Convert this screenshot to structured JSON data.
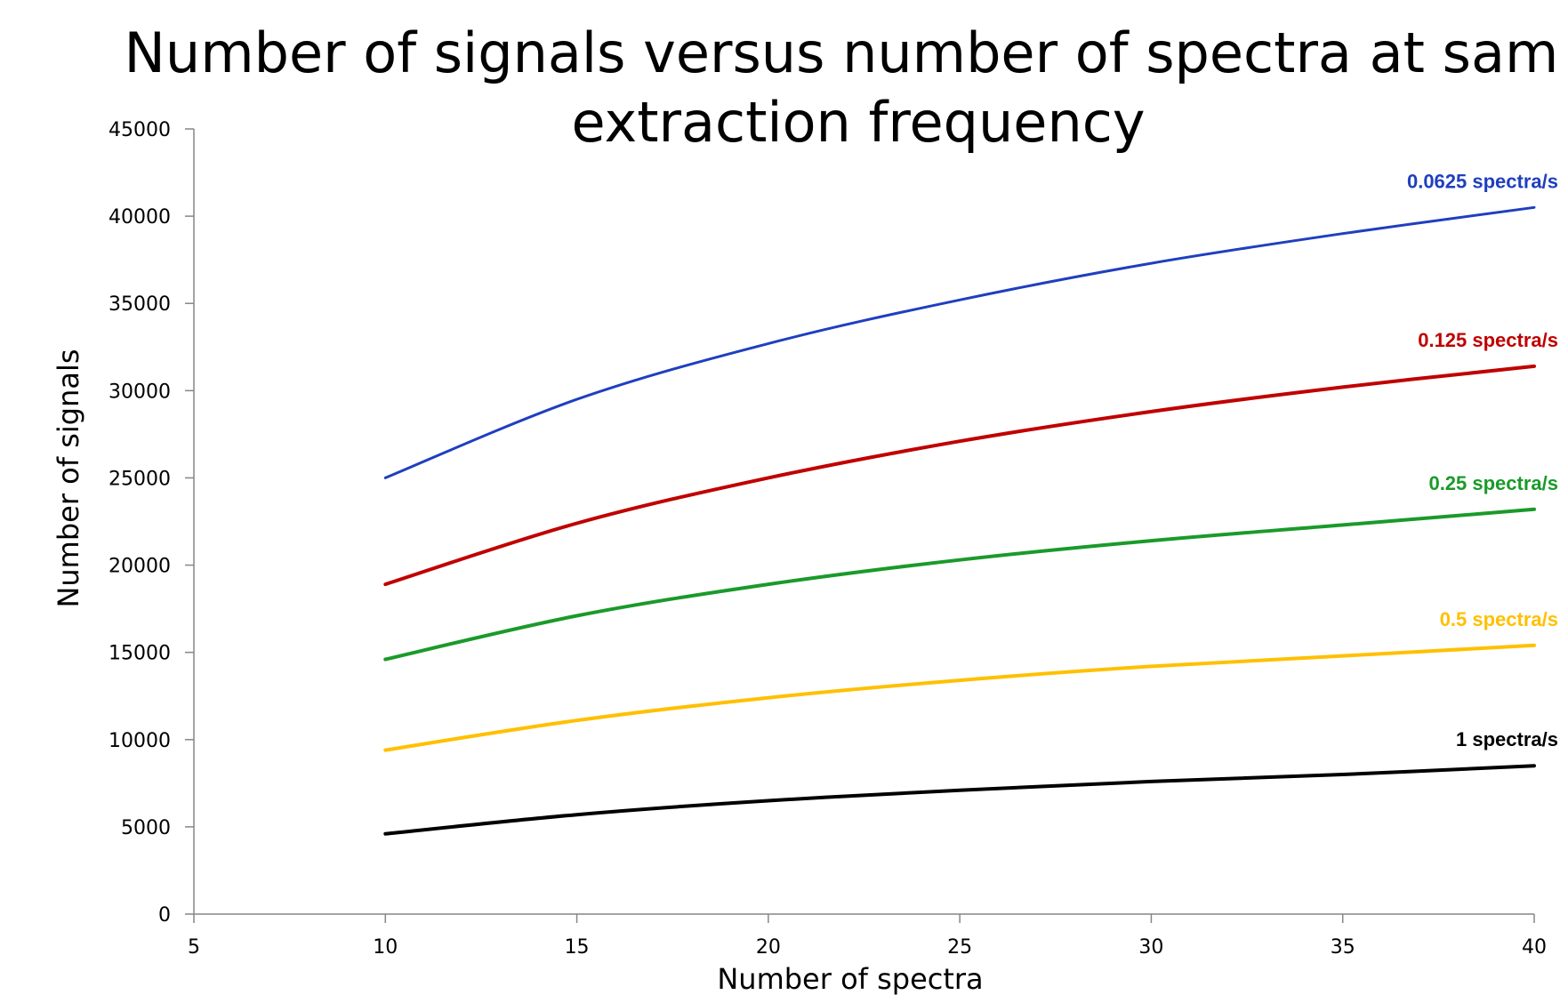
{
  "chart_data": {
    "type": "line",
    "title_lines": [
      "Number of signals versus number of spectra at same",
      "extraction frequency"
    ],
    "xlabel": "Number of spectra",
    "ylabel": "Number of signals",
    "xlim": [
      5,
      40
    ],
    "ylim": [
      0,
      45000
    ],
    "xticks": [
      5,
      10,
      15,
      20,
      25,
      30,
      35,
      40
    ],
    "yticks": [
      0,
      5000,
      10000,
      15000,
      20000,
      25000,
      30000,
      35000,
      40000,
      45000
    ],
    "grid": false,
    "legend": "none",
    "x": [
      10,
      15,
      20,
      25,
      30,
      35,
      40
    ],
    "series": [
      {
        "name": "0.0625 spectra/s",
        "color": "#1f3fbf",
        "values": [
          25000,
          29500,
          32700,
          35200,
          37300,
          39000,
          40500
        ]
      },
      {
        "name": "0.125 spectra/s",
        "color": "#c00000",
        "values": [
          18900,
          22400,
          25000,
          27100,
          28800,
          30200,
          31400
        ]
      },
      {
        "name": "0.25 spectra/s",
        "color": "#1a9a2a",
        "values": [
          14600,
          17100,
          18900,
          20300,
          21400,
          22300,
          23200
        ]
      },
      {
        "name": "0.5 spectra/s",
        "color": "#ffc000",
        "values": [
          9400,
          11100,
          12400,
          13400,
          14200,
          14800,
          15400
        ]
      },
      {
        "name": "1 spectra/s",
        "color": "#000000",
        "values": [
          4600,
          5700,
          6500,
          7100,
          7600,
          8000,
          8500
        ]
      }
    ]
  }
}
